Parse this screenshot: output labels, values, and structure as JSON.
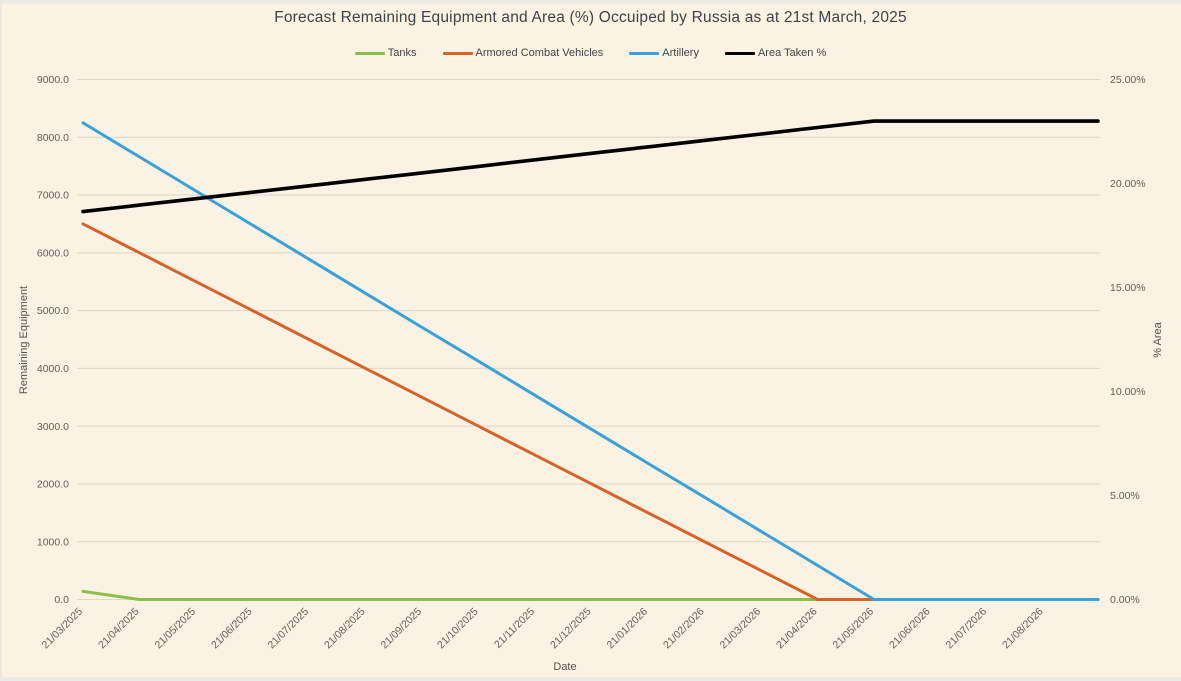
{
  "chart_data": {
    "type": "line",
    "title": "Forecast Remaining Equipment and Area (%) Occuiped by Russia as at 21st March, 2025",
    "xlabel": "Date",
    "ylabel_left": "Remaining Equipment",
    "ylabel_right": "% Area",
    "grid": "horizontal",
    "legend_position": "top",
    "x_labels": [
      "21/03/2025",
      "21/04/2025",
      "21/05/2025",
      "21/06/2025",
      "21/07/2025",
      "21/08/2025",
      "21/09/2025",
      "21/10/2025",
      "21/11/2025",
      "21/12/2025",
      "21/01/2026",
      "21/02/2026",
      "21/03/2026",
      "21/04/2026",
      "21/05/2026",
      "21/06/2026",
      "21/07/2026",
      "21/08/2026"
    ],
    "ylim_left": [
      0,
      9000
    ],
    "yticks_left": [
      "0.0",
      "1000.0",
      "2000.0",
      "3000.0",
      "4000.0",
      "5000.0",
      "6000.0",
      "7000.0",
      "8000.0",
      "9000.0"
    ],
    "ylim_right": [
      0,
      25
    ],
    "yticks_right": [
      "0.00%",
      "5.00%",
      "10.00%",
      "15.00%",
      "20.00%",
      "25.00%"
    ],
    "series": [
      {
        "name": "Tanks",
        "axis": "left",
        "color": "#8DBE4B",
        "values": [
          140,
          0,
          0,
          0,
          0,
          0,
          0,
          0,
          0,
          0,
          0,
          0,
          0,
          0,
          0,
          0,
          0,
          0
        ]
      },
      {
        "name": "Armored Combat Vehicles",
        "axis": "left",
        "color": "#D7632B",
        "values": [
          6500,
          6000,
          5500,
          5000,
          4500,
          4000,
          3500,
          3000,
          2500,
          2000,
          1500,
          1000,
          500,
          0,
          0,
          0,
          0,
          0
        ]
      },
      {
        "name": "Artillery",
        "axis": "left",
        "color": "#3AA1DC",
        "values": [
          8250,
          7660,
          7070,
          6480,
          5890,
          5300,
          4710,
          4125,
          3535,
          2945,
          2355,
          1770,
          1180,
          590,
          0,
          0,
          0,
          0
        ]
      },
      {
        "name": "Area Taken %",
        "axis": "right",
        "color": "#000000",
        "values": [
          18.65,
          18.96,
          19.27,
          19.58,
          19.89,
          20.2,
          20.51,
          20.82,
          21.14,
          21.45,
          21.76,
          22.07,
          22.38,
          22.69,
          23.0,
          23.0,
          23.0,
          23.0
        ]
      }
    ]
  }
}
